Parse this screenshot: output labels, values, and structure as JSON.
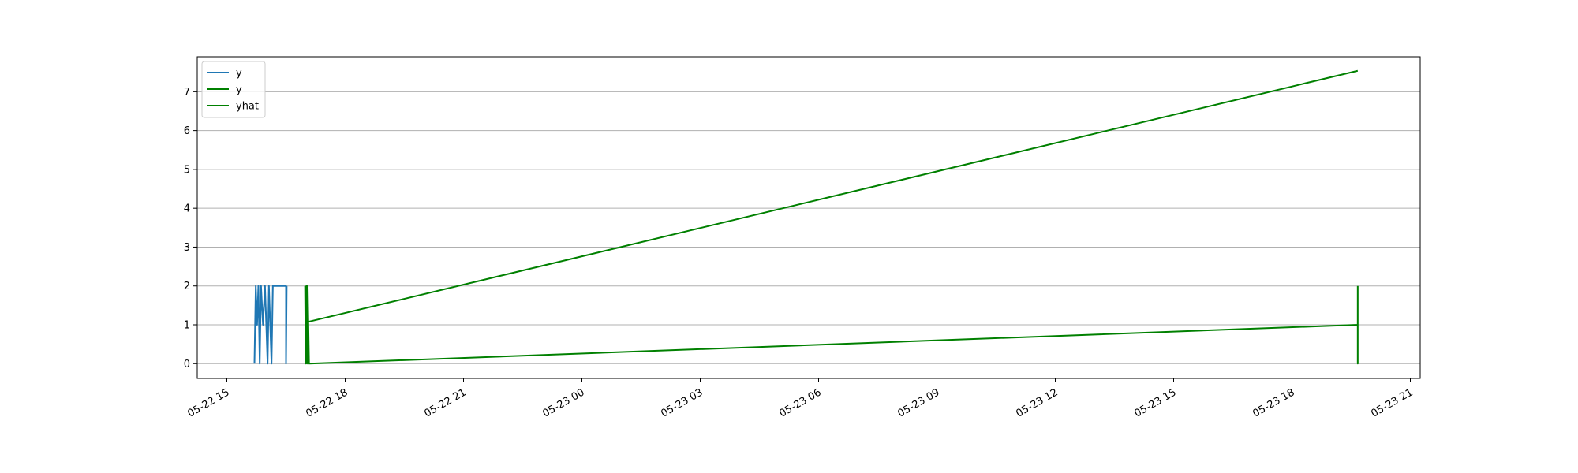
{
  "chart_data": {
    "type": "line",
    "title": "",
    "xlabel": "",
    "ylabel": "",
    "x_axis_type": "datetime",
    "xlim": [
      "2016-05-22 14:15",
      "2016-05-23 21:15"
    ],
    "ylim": [
      -0.38,
      7.9
    ],
    "y_ticks": [
      0,
      1,
      2,
      3,
      4,
      5,
      6,
      7
    ],
    "x_ticks": [
      {
        "t": "2016-05-22 15:00",
        "label": "05-22 15"
      },
      {
        "t": "2016-05-22 18:00",
        "label": "05-22 18"
      },
      {
        "t": "2016-05-22 21:00",
        "label": "05-22 21"
      },
      {
        "t": "2016-05-23 00:00",
        "label": "05-23 00"
      },
      {
        "t": "2016-05-23 03:00",
        "label": "05-23 03"
      },
      {
        "t": "2016-05-23 06:00",
        "label": "05-23 06"
      },
      {
        "t": "2016-05-23 09:00",
        "label": "05-23 09"
      },
      {
        "t": "2016-05-23 12:00",
        "label": "05-23 12"
      },
      {
        "t": "2016-05-23 15:00",
        "label": "05-23 15"
      },
      {
        "t": "2016-05-23 18:00",
        "label": "05-23 18"
      },
      {
        "t": "2016-05-23 21:00",
        "label": "05-23 21"
      }
    ],
    "grid": "horizontal",
    "legend_position": "top-left",
    "series": [
      {
        "name": "y",
        "color": "#1f77b4",
        "points": [
          {
            "t": "2016-05-22 15:42",
            "y": 0
          },
          {
            "t": "2016-05-22 15:44",
            "y": 2
          },
          {
            "t": "2016-05-22 15:46",
            "y": 1
          },
          {
            "t": "2016-05-22 15:48",
            "y": 2
          },
          {
            "t": "2016-05-22 15:50",
            "y": 0
          },
          {
            "t": "2016-05-22 15:52",
            "y": 2
          },
          {
            "t": "2016-05-22 15:55",
            "y": 1
          },
          {
            "t": "2016-05-22 15:58",
            "y": 2
          },
          {
            "t": "2016-05-22 16:00",
            "y": 1
          },
          {
            "t": "2016-05-22 16:02",
            "y": 0
          },
          {
            "t": "2016-05-22 16:04",
            "y": 2
          },
          {
            "t": "2016-05-22 16:06",
            "y": 1
          },
          {
            "t": "2016-05-22 16:08",
            "y": 0
          },
          {
            "t": "2016-05-22 16:10",
            "y": 2
          },
          {
            "t": "2016-05-22 16:30",
            "y": 2
          },
          {
            "t": "2016-05-22 16:30",
            "y": 0
          },
          {
            "t": "2016-05-22 16:31",
            "y": 2
          }
        ]
      },
      {
        "name": "y",
        "color": "#008000",
        "points": [
          {
            "t": "2016-05-22 16:59",
            "y": 2
          },
          {
            "t": "2016-05-22 17:00",
            "y": 0
          },
          {
            "t": "2016-05-22 17:01",
            "y": 2
          },
          {
            "t": "2016-05-22 17:02",
            "y": 0
          },
          {
            "t": "2016-05-22 17:03",
            "y": 2
          },
          {
            "t": "2016-05-22 17:05",
            "y": 0
          },
          {
            "t": "2016-05-23 19:40",
            "y": 1
          },
          {
            "t": "2016-05-23 19:40",
            "y": 0
          },
          {
            "t": "2016-05-23 19:40",
            "y": 2
          }
        ]
      },
      {
        "name": "yhat",
        "color": "#008000",
        "points": [
          {
            "t": "2016-05-22 17:02",
            "y": 1.07
          },
          {
            "t": "2016-05-23 19:40",
            "y": 7.54
          }
        ]
      }
    ]
  }
}
